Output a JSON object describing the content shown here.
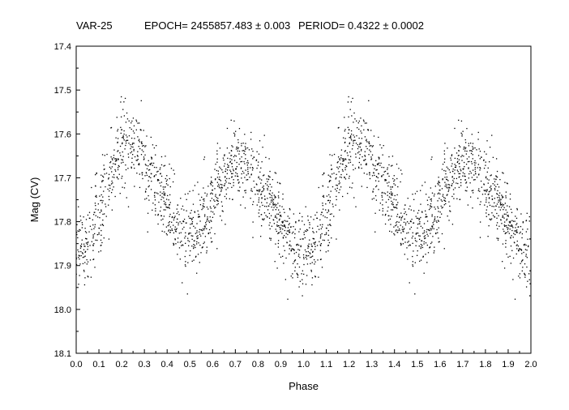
{
  "chart_data": {
    "type": "scatter",
    "title_parts": {
      "name": "VAR-25",
      "epoch": "EPOCH= 2455857.483 ± 0.003",
      "period": "PERIOD= 0.4322 ± 0.0002"
    },
    "xlabel": "Phase",
    "ylabel": "Mag (CV)",
    "xlim": [
      0.0,
      2.0
    ],
    "ylim": [
      18.1,
      17.4
    ],
    "y_inverted": true,
    "x_ticks": [
      "0.0",
      "0.1",
      "0.2",
      "0.3",
      "0.4",
      "0.5",
      "0.6",
      "0.7",
      "0.8",
      "0.9",
      "1.0",
      "1.1",
      "1.2",
      "1.3",
      "1.4",
      "1.5",
      "1.6",
      "1.7",
      "1.8",
      "1.9",
      "2.0"
    ],
    "y_ticks": [
      "17.4",
      "17.5",
      "17.6",
      "17.7",
      "17.8",
      "17.9",
      "18.0",
      "18.1"
    ],
    "grid": false,
    "series": [
      {
        "marker_color": "#000000",
        "phase_period": 1.0,
        "light_curve": [
          [
            0.0,
            17.88
          ],
          [
            0.05,
            17.86
          ],
          [
            0.1,
            17.78
          ],
          [
            0.15,
            17.7
          ],
          [
            0.2,
            17.63
          ],
          [
            0.25,
            17.62
          ],
          [
            0.3,
            17.66
          ],
          [
            0.35,
            17.71
          ],
          [
            0.4,
            17.76
          ],
          [
            0.45,
            17.81
          ],
          [
            0.5,
            17.84
          ],
          [
            0.55,
            17.81
          ],
          [
            0.6,
            17.75
          ],
          [
            0.65,
            17.7
          ],
          [
            0.7,
            17.66
          ],
          [
            0.75,
            17.66
          ],
          [
            0.8,
            17.7
          ],
          [
            0.85,
            17.75
          ],
          [
            0.9,
            17.8
          ],
          [
            0.95,
            17.85
          ],
          [
            1.0,
            17.88
          ]
        ],
        "scatter": 0.045,
        "n_points": 2600
      }
    ]
  }
}
